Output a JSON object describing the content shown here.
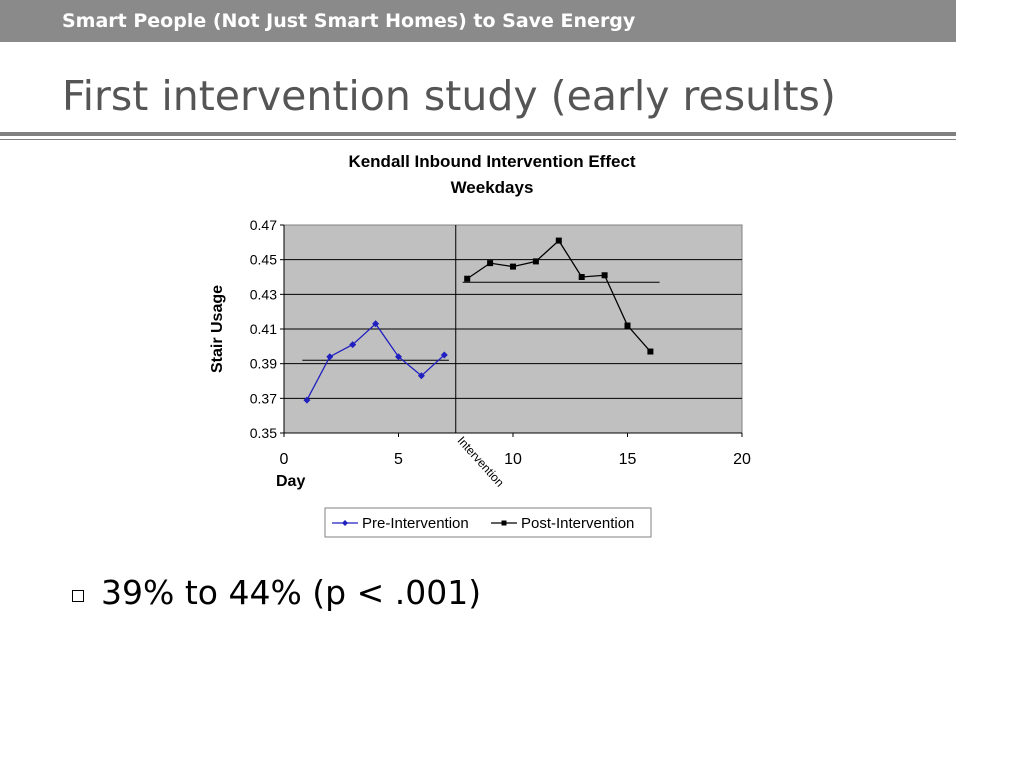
{
  "header": {
    "title": "Smart People (Not Just Smart Homes) to Save Energy"
  },
  "slide": {
    "title": "First intervention study (early results)"
  },
  "bullets": [
    {
      "text": "39% to 44% (p < .001)"
    }
  ],
  "colors": {
    "header_bg": "#8a8a8a",
    "plot_bg": "#c0c0c0",
    "pre_series": "#2020c0",
    "post_series": "#000000"
  },
  "chart_data": {
    "type": "line",
    "title": "Kendall Inbound Intervention Effect",
    "subtitle": "Weekdays",
    "xlabel": "Day",
    "ylabel": "Stair Usage",
    "xlim": [
      0,
      20
    ],
    "ylim": [
      0.35,
      0.47
    ],
    "x_ticks": [
      0,
      5,
      10,
      15,
      20
    ],
    "y_ticks": [
      0.35,
      0.37,
      0.39,
      0.41,
      0.43,
      0.45,
      0.47
    ],
    "y_tick_labels": [
      "0.35",
      "0.37",
      "0.39",
      "0.41",
      "0.43",
      "0.45",
      "0.47"
    ],
    "grid": true,
    "legend_position": "bottom",
    "series": [
      {
        "name": "Pre-Intervention",
        "marker": "diamond",
        "x": [
          1,
          2,
          3,
          4,
          5,
          6,
          7
        ],
        "y": [
          0.369,
          0.394,
          0.401,
          0.413,
          0.394,
          0.383,
          0.395
        ]
      },
      {
        "name": "Post-Intervention",
        "marker": "square",
        "x": [
          8,
          9,
          10,
          11,
          12,
          13,
          14,
          15,
          16
        ],
        "y": [
          0.439,
          0.448,
          0.446,
          0.449,
          0.461,
          0.44,
          0.441,
          0.412,
          0.397
        ]
      }
    ],
    "mean_lines": [
      {
        "x": [
          0.8,
          7.2
        ],
        "y": 0.392
      },
      {
        "x": [
          7.8,
          16.4
        ],
        "y": 0.437
      }
    ],
    "intervention": {
      "x": 7.5,
      "label": "Intervention"
    }
  }
}
